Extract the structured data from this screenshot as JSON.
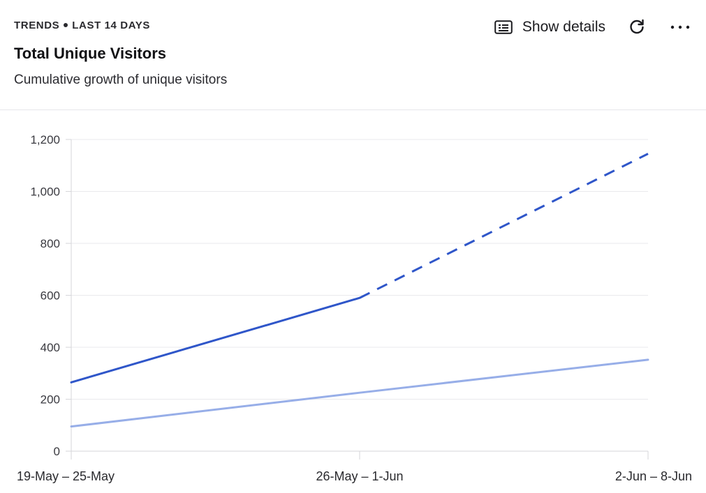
{
  "header": {
    "eyebrow_left": "TRENDS",
    "eyebrow_right": "LAST 14 DAYS",
    "title": "Total Unique Visitors",
    "subtitle": "Cumulative growth of unique visitors"
  },
  "actions": {
    "show_details_label": "Show details",
    "show_details_icon": "details-list-icon",
    "refresh_icon": "refresh-icon",
    "more_icon": "more-horizontal-icon"
  },
  "colors": {
    "primary_series": "#2f56c9",
    "secondary_series": "#97aee8",
    "grid": "#e9e9ec",
    "axis": "#d6d6da"
  },
  "chart_data": {
    "type": "line",
    "title": "Total Unique Visitors",
    "subtitle": "Cumulative growth of unique visitors",
    "categories": [
      "19-May – 25-May",
      "26-May – 1-Jun",
      "2-Jun – 8-Jun"
    ],
    "ylim": [
      0,
      1200
    ],
    "yticks": [
      0,
      200,
      400,
      600,
      800,
      1000,
      1200
    ],
    "ytick_labels": [
      "0",
      "200",
      "400",
      "600",
      "800",
      "1,000",
      "1,200"
    ],
    "grid": true,
    "series": [
      {
        "values": [
          265,
          590,
          1145
        ],
        "color": "#2f56c9",
        "dashed_from_index": 1
      },
      {
        "values": [
          95,
          225,
          352
        ],
        "color": "#97aee8",
        "dashed_from_index": null
      }
    ]
  }
}
